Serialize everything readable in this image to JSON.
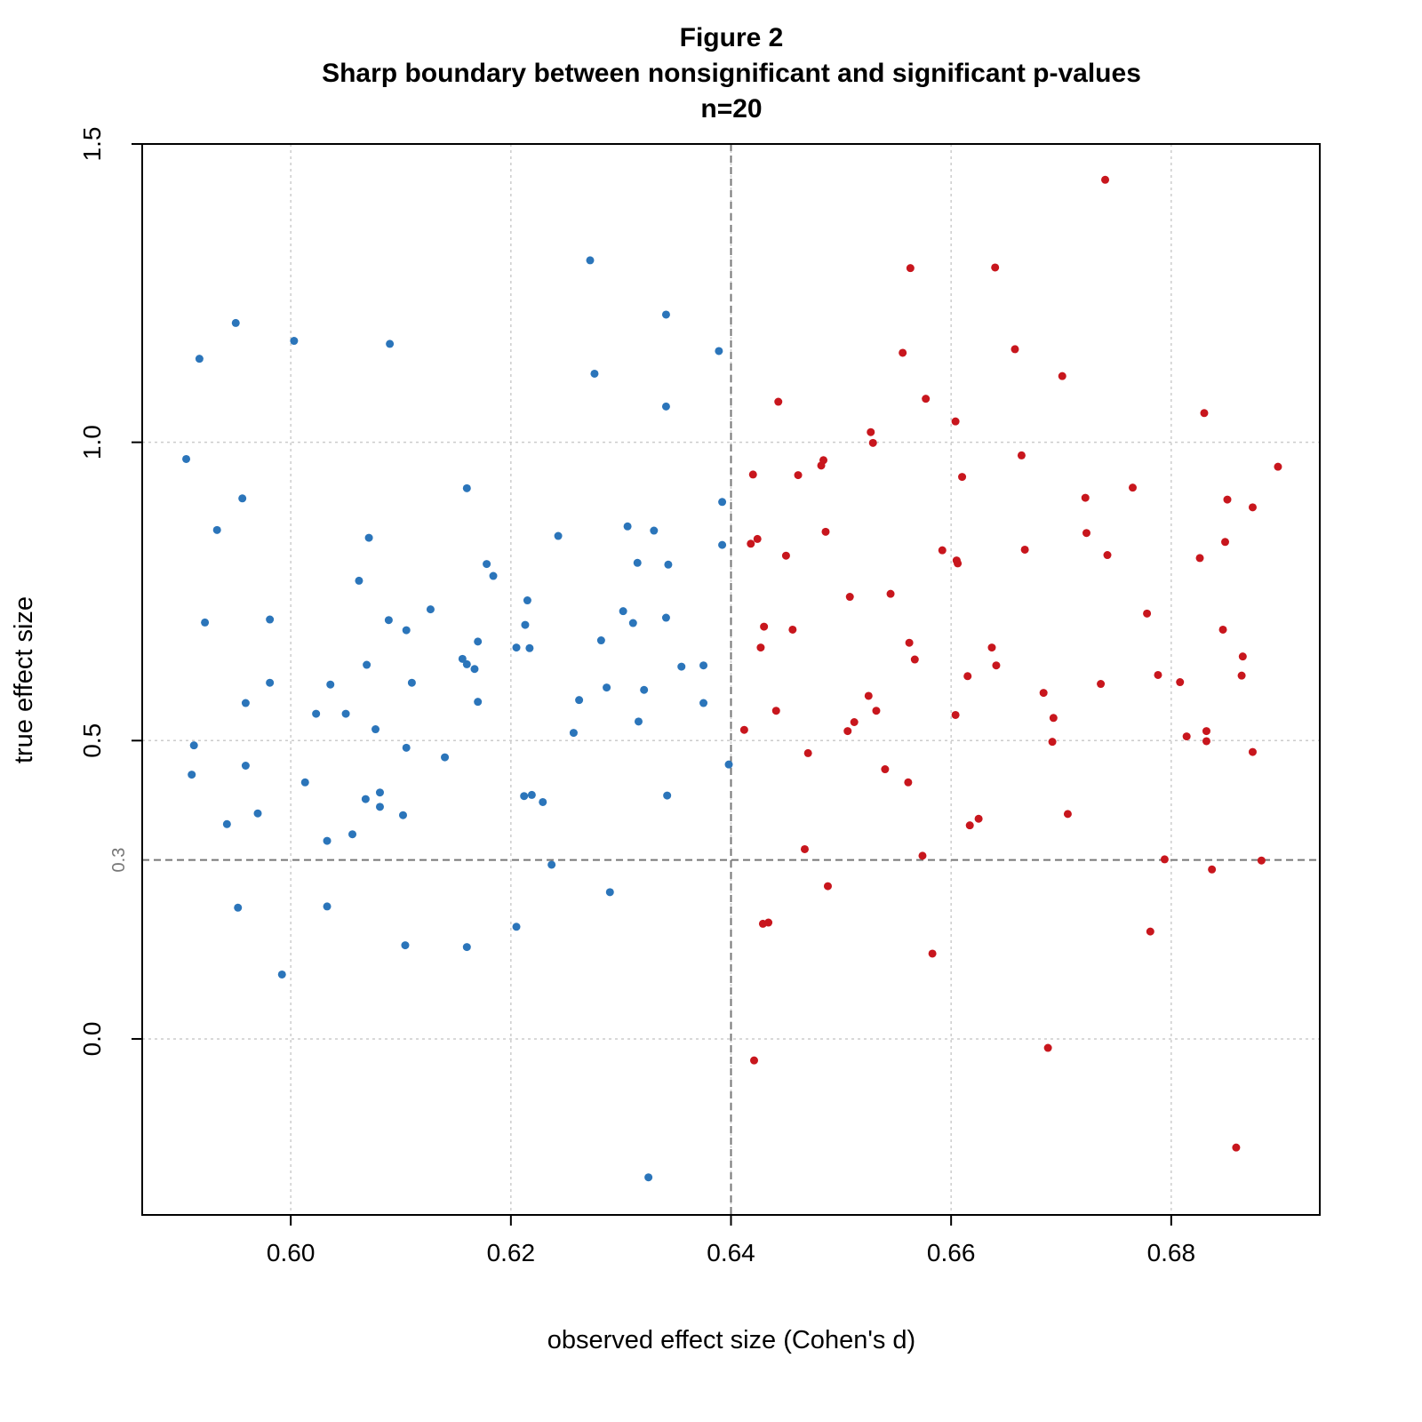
{
  "chart_data": {
    "type": "scatter",
    "title": "Figure 2",
    "subtitle": "Sharp boundary between nonsignificant and significant p-values",
    "subtitle2": "n=20",
    "xlabel": "observed effect size (Cohen's d)",
    "ylabel": "true effect size",
    "xlim": [
      0.5865,
      0.6935
    ],
    "ylim": [
      -0.295,
      1.5
    ],
    "x_ticks": [
      "0.60",
      "0.62",
      "0.64",
      "0.66",
      "0.68"
    ],
    "y_ticks": [
      "0.0",
      "0.5",
      "1.0",
      "1.5"
    ],
    "grid": true,
    "reference_lines": {
      "x": 0.64,
      "y": 0.3,
      "y_label": "0.3"
    },
    "colors": {
      "nonsignificant": "#2b75ba",
      "significant": "#c8161d",
      "reference": "#777777",
      "grid": "#cccccc"
    },
    "series": [
      {
        "color": "#2b75ba",
        "points": [
          [
            0.5905,
            0.972
          ],
          [
            0.5912,
            0.492
          ],
          [
            0.591,
            0.443
          ],
          [
            0.5917,
            1.14
          ],
          [
            0.5922,
            0.698
          ],
          [
            0.5933,
            0.853
          ],
          [
            0.5942,
            0.36
          ],
          [
            0.595,
            1.2
          ],
          [
            0.5952,
            0.22
          ],
          [
            0.5956,
            0.906
          ],
          [
            0.5959,
            0.563
          ],
          [
            0.5959,
            0.458
          ],
          [
            0.597,
            0.378
          ],
          [
            0.5981,
            0.703
          ],
          [
            0.5981,
            0.597
          ],
          [
            0.5992,
            0.108
          ],
          [
            0.6003,
            1.17
          ],
          [
            0.6013,
            0.43
          ],
          [
            0.6023,
            0.545
          ],
          [
            0.6033,
            0.332
          ],
          [
            0.6033,
            0.222
          ],
          [
            0.6036,
            0.594
          ],
          [
            0.605,
            0.545
          ],
          [
            0.6056,
            0.343
          ],
          [
            0.6062,
            0.768
          ],
          [
            0.6068,
            0.402
          ],
          [
            0.6069,
            0.627
          ],
          [
            0.6071,
            0.84
          ],
          [
            0.6077,
            0.519
          ],
          [
            0.6081,
            0.389
          ],
          [
            0.6081,
            0.413
          ],
          [
            0.6089,
            0.702
          ],
          [
            0.609,
            1.165
          ],
          [
            0.6102,
            0.375
          ],
          [
            0.6104,
            0.157
          ],
          [
            0.6105,
            0.685
          ],
          [
            0.6105,
            0.488
          ],
          [
            0.611,
            0.597
          ],
          [
            0.6127,
            0.72
          ],
          [
            0.614,
            0.472
          ],
          [
            0.6156,
            0.637
          ],
          [
            0.616,
            0.628
          ],
          [
            0.616,
            0.923
          ],
          [
            0.616,
            0.154
          ],
          [
            0.6167,
            0.62
          ],
          [
            0.617,
            0.565
          ],
          [
            0.617,
            0.666
          ],
          [
            0.6178,
            0.796
          ],
          [
            0.6184,
            0.776
          ],
          [
            0.6205,
            0.656
          ],
          [
            0.6205,
            0.188
          ],
          [
            0.6212,
            0.407
          ],
          [
            0.6213,
            0.694
          ],
          [
            0.6215,
            0.735
          ],
          [
            0.6217,
            0.655
          ],
          [
            0.6219,
            0.409
          ],
          [
            0.6229,
            0.397
          ],
          [
            0.6237,
            0.292
          ],
          [
            0.6243,
            0.843
          ],
          [
            0.6257,
            0.513
          ],
          [
            0.6262,
            0.568
          ],
          [
            0.6272,
            1.305
          ],
          [
            0.6276,
            1.115
          ],
          [
            0.6282,
            0.668
          ],
          [
            0.6287,
            0.589
          ],
          [
            0.629,
            0.246
          ],
          [
            0.6302,
            0.717
          ],
          [
            0.6306,
            0.859
          ],
          [
            0.6311,
            0.697
          ],
          [
            0.6315,
            0.798
          ],
          [
            0.6316,
            0.532
          ],
          [
            0.6321,
            0.585
          ],
          [
            0.633,
            0.852
          ],
          [
            0.6341,
            1.214
          ],
          [
            0.6341,
            1.06
          ],
          [
            0.6341,
            0.706
          ],
          [
            0.6342,
            0.408
          ],
          [
            0.6343,
            0.795
          ],
          [
            0.6355,
            0.624
          ],
          [
            0.6375,
            0.626
          ],
          [
            0.6375,
            0.563
          ],
          [
            0.6389,
            1.153
          ],
          [
            0.6392,
            0.9
          ],
          [
            0.6392,
            0.828
          ],
          [
            0.6398,
            0.46
          ],
          [
            0.6325,
            -0.232
          ]
        ]
      },
      {
        "color": "#c8161d",
        "points": [
          [
            0.6412,
            0.518
          ],
          [
            0.6418,
            0.83
          ],
          [
            0.642,
            0.946
          ],
          [
            0.6421,
            -0.036
          ],
          [
            0.6424,
            0.838
          ],
          [
            0.6427,
            0.656
          ],
          [
            0.6429,
            0.193
          ],
          [
            0.643,
            0.691
          ],
          [
            0.6434,
            0.195
          ],
          [
            0.6441,
            0.55
          ],
          [
            0.6443,
            1.068
          ],
          [
            0.645,
            0.81
          ],
          [
            0.6456,
            0.686
          ],
          [
            0.6461,
            0.945
          ],
          [
            0.6467,
            0.318
          ],
          [
            0.647,
            0.479
          ],
          [
            0.6482,
            0.961
          ],
          [
            0.6484,
            0.97
          ],
          [
            0.6486,
            0.85
          ],
          [
            0.6488,
            0.256
          ],
          [
            0.6506,
            0.516
          ],
          [
            0.6508,
            0.741
          ],
          [
            0.6512,
            0.531
          ],
          [
            0.6525,
            0.575
          ],
          [
            0.6527,
            1.017
          ],
          [
            0.6529,
            0.999
          ],
          [
            0.6532,
            0.55
          ],
          [
            0.654,
            0.452
          ],
          [
            0.6545,
            0.746
          ],
          [
            0.6556,
            1.15
          ],
          [
            0.6561,
            0.43
          ],
          [
            0.6562,
            0.664
          ],
          [
            0.6563,
            1.292
          ],
          [
            0.6567,
            0.636
          ],
          [
            0.6574,
            0.307
          ],
          [
            0.6577,
            1.073
          ],
          [
            0.6583,
            0.143
          ],
          [
            0.6592,
            0.819
          ],
          [
            0.6604,
            1.035
          ],
          [
            0.6604,
            0.543
          ],
          [
            0.6605,
            0.802
          ],
          [
            0.6606,
            0.797
          ],
          [
            0.661,
            0.942
          ],
          [
            0.6615,
            0.608
          ],
          [
            0.6617,
            0.358
          ],
          [
            0.6625,
            0.369
          ],
          [
            0.6637,
            0.656
          ],
          [
            0.664,
            1.293
          ],
          [
            0.6641,
            0.626
          ],
          [
            0.6658,
            1.156
          ],
          [
            0.6664,
            0.978
          ],
          [
            0.6667,
            0.82
          ],
          [
            0.6684,
            0.58
          ],
          [
            0.6688,
            -0.015
          ],
          [
            0.6692,
            0.498
          ],
          [
            0.6693,
            0.538
          ],
          [
            0.6701,
            1.111
          ],
          [
            0.6706,
            0.377
          ],
          [
            0.6722,
            0.907
          ],
          [
            0.6723,
            0.848
          ],
          [
            0.6736,
            0.595
          ],
          [
            0.674,
            1.44
          ],
          [
            0.6742,
            0.811
          ],
          [
            0.6765,
            0.924
          ],
          [
            0.6778,
            0.713
          ],
          [
            0.6781,
            0.18
          ],
          [
            0.6788,
            0.61
          ],
          [
            0.6794,
            0.301
          ],
          [
            0.6808,
            0.598
          ],
          [
            0.6814,
            0.507
          ],
          [
            0.6826,
            0.806
          ],
          [
            0.683,
            1.049
          ],
          [
            0.6832,
            0.516
          ],
          [
            0.6832,
            0.499
          ],
          [
            0.6837,
            0.284
          ],
          [
            0.6847,
            0.686
          ],
          [
            0.6849,
            0.833
          ],
          [
            0.6851,
            0.904
          ],
          [
            0.6859,
            -0.182
          ],
          [
            0.6864,
            0.609
          ],
          [
            0.6865,
            0.641
          ],
          [
            0.6874,
            0.891
          ],
          [
            0.6874,
            0.481
          ],
          [
            0.6882,
            0.299
          ],
          [
            0.6897,
            0.959
          ]
        ]
      }
    ]
  }
}
